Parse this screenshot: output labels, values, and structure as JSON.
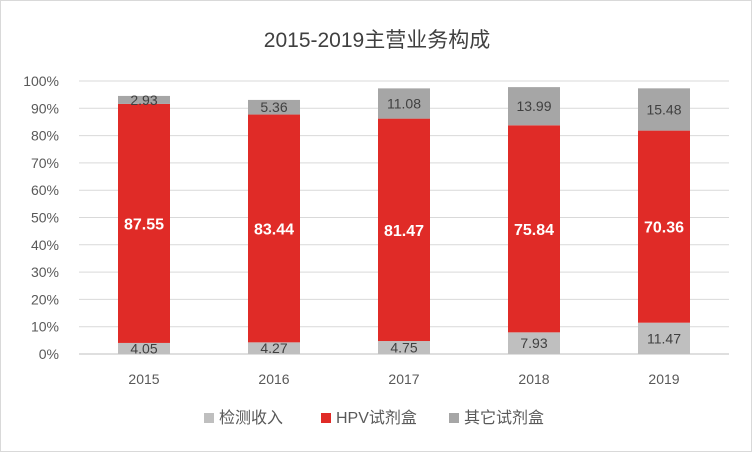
{
  "chart_data": {
    "type": "bar",
    "stacked": true,
    "percent": true,
    "title": "2015-2019主营业务构成",
    "categories": [
      "2015",
      "2016",
      "2017",
      "2018",
      "2019"
    ],
    "y_ticks": [
      "0%",
      "10%",
      "20%",
      "30%",
      "40%",
      "50%",
      "60%",
      "70%",
      "80%",
      "90%",
      "100%"
    ],
    "ylim": [
      0,
      100
    ],
    "grid": true,
    "legend_position": "bottom",
    "series": [
      {
        "name": "检测收入",
        "color": "#bfbfbf",
        "values": [
          4.05,
          4.27,
          4.75,
          7.93,
          11.47
        ]
      },
      {
        "name": "HPV试剂盒",
        "color": "#e02b27",
        "values": [
          87.55,
          83.44,
          81.47,
          75.84,
          70.36
        ]
      },
      {
        "name": "其它试剂盒",
        "color": "#a6a6a6",
        "values": [
          2.93,
          5.36,
          11.08,
          13.99,
          15.48
        ]
      }
    ],
    "data_labels": [
      [
        "4.05",
        "4.27",
        "4.75",
        "7.93",
        "11.47"
      ],
      [
        "87.55",
        "83.44",
        "81.47",
        "75.84",
        "70.36"
      ],
      [
        "2.93",
        "5.36",
        "11.08",
        "13.99",
        "15.48"
      ]
    ]
  }
}
